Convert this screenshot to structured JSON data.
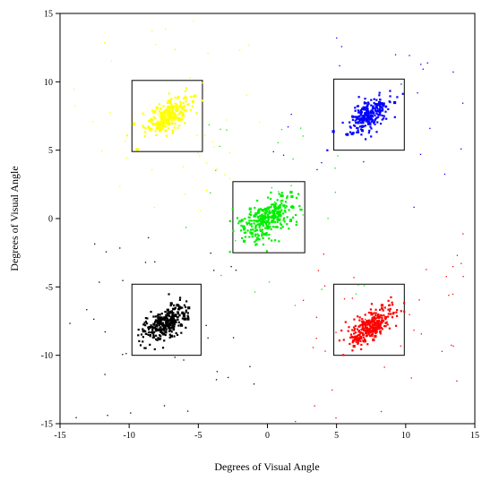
{
  "chart_data": {
    "type": "scatter",
    "title": "",
    "xlabel": "Degrees of Visual Angle",
    "ylabel": "Degrees of Visual Angle",
    "xlim": [
      -15,
      15
    ],
    "ylim": [
      -15,
      15
    ],
    "xticks": [
      -15,
      -10,
      -5,
      0,
      5,
      10,
      15
    ],
    "yticks": [
      -15,
      -10,
      -5,
      0,
      5,
      10,
      15
    ],
    "grid": false,
    "boxes": [
      {
        "x0": -9.8,
        "x1": -4.7,
        "y0": 4.9,
        "y1": 10.1
      },
      {
        "x0": 4.8,
        "x1": 9.9,
        "y0": 5.0,
        "y1": 10.2
      },
      {
        "x0": -2.5,
        "x1": 2.7,
        "y0": -2.5,
        "y1": 2.7
      },
      {
        "x0": -9.8,
        "x1": -4.8,
        "y0": -10.0,
        "y1": -4.8
      },
      {
        "x0": 4.8,
        "x1": 9.9,
        "y0": -10.0,
        "y1": -4.8
      }
    ],
    "series": [
      {
        "color": "#ffff00",
        "cx": -7.2,
        "cy": 7.5,
        "spread": 0.9,
        "n": 260,
        "stray": 45
      },
      {
        "color": "#0000ff",
        "cx": 7.2,
        "cy": 7.5,
        "spread": 0.9,
        "n": 260,
        "stray": 25
      },
      {
        "color": "#00ee00",
        "cx": 0.0,
        "cy": 0.0,
        "spread": 1.1,
        "n": 300,
        "stray": 30
      },
      {
        "color": "#000000",
        "cx": -7.3,
        "cy": -7.6,
        "spread": 0.9,
        "n": 280,
        "stray": 35
      },
      {
        "color": "#ff0000",
        "cx": 7.5,
        "cy": -7.9,
        "spread": 0.9,
        "n": 280,
        "stray": 40
      }
    ]
  }
}
